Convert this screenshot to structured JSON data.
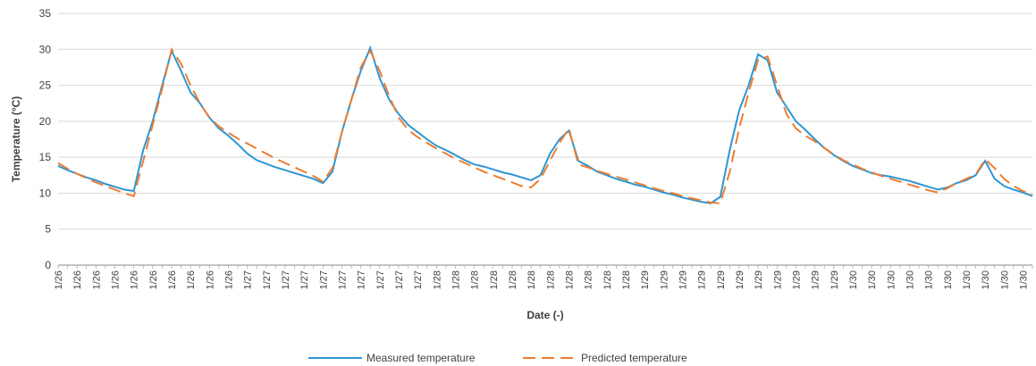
{
  "chart_data": {
    "type": "line",
    "x_label": "Date (-)",
    "y_label": "Temperature (°C)",
    "ylim": [
      0,
      35
    ],
    "yticks": [
      0,
      5,
      10,
      15,
      20,
      25,
      30,
      35
    ],
    "grid": true,
    "legend": "bottom",
    "categories": [
      "1/26",
      null,
      "1/26",
      null,
      "1/26",
      null,
      "1/26",
      null,
      "1/26",
      null,
      "1/26",
      null,
      "1/26",
      null,
      "1/26",
      null,
      "1/26",
      null,
      "1/26",
      null,
      "1/27",
      null,
      "1/27",
      null,
      "1/27",
      null,
      "1/27",
      null,
      "1/27",
      null,
      "1/27",
      null,
      "1/27",
      null,
      "1/27",
      null,
      "1/27",
      null,
      "1/27",
      null,
      "1/28",
      null,
      "1/28",
      null,
      "1/28",
      null,
      "1/28",
      null,
      "1/28",
      null,
      "1/28",
      null,
      "1/28",
      null,
      "1/28",
      null,
      "1/28",
      null,
      "1/28",
      null,
      "1/28",
      null,
      "1/29",
      null,
      "1/29",
      null,
      "1/29",
      null,
      "1/29",
      null,
      "1/29",
      null,
      "1/29",
      null,
      "1/29",
      null,
      "1/29",
      null,
      "1/29",
      null,
      "1/29",
      null,
      "1/29",
      null,
      "1/30",
      null,
      "1/30",
      null,
      "1/30",
      null,
      "1/30",
      null,
      "1/30",
      null,
      "1/30",
      null,
      "1/30",
      null,
      "1/30",
      null,
      "1/30",
      null,
      "1/30",
      null
    ],
    "series": [
      {
        "name": "Measured temperature",
        "color": "#2e96d2",
        "dash": false,
        "values": [
          13.8,
          13.2,
          12.7,
          12.2,
          11.8,
          11.3,
          10.9,
          10.5,
          10.3,
          16,
          20,
          25,
          29.8,
          27,
          24,
          22.5,
          20.5,
          19,
          18,
          16.8,
          15.5,
          14.6,
          14.1,
          13.6,
          13.2,
          12.8,
          12.4,
          12,
          11.4,
          13,
          18.5,
          23,
          27,
          30.2,
          26,
          23,
          21,
          19.5,
          18.5,
          17.5,
          16.6,
          16,
          15.3,
          14.6,
          14,
          13.7,
          13.3,
          12.9,
          12.6,
          12.2,
          11.8,
          12.5,
          15.5,
          17.5,
          18.7,
          14.5,
          13.8,
          13,
          12.5,
          12,
          11.6,
          11.2,
          10.9,
          10.5,
          10.1,
          9.8,
          9.4,
          9.1,
          8.8,
          8.6,
          9.5,
          16,
          21.5,
          25,
          29.3,
          28.5,
          24,
          22,
          20,
          18.8,
          17.5,
          16.3,
          15.3,
          14.5,
          13.8,
          13.3,
          12.8,
          12.5,
          12.3,
          12,
          11.7,
          11.3,
          10.9,
          10.5,
          10.8,
          11.4,
          11.8,
          12.5,
          14.5,
          12,
          11,
          10.5,
          10.1,
          9.6
        ]
      },
      {
        "name": "Predicted temperature",
        "color": "#ed7d31",
        "dash": true,
        "values": [
          14.2,
          13.4,
          12.7,
          12.1,
          11.5,
          11,
          10.5,
          10,
          9.6,
          14.5,
          19.5,
          24.5,
          30,
          28,
          25,
          22.5,
          20.5,
          19.3,
          18.4,
          17.6,
          16.9,
          16.2,
          15.5,
          14.8,
          14.2,
          13.6,
          13,
          12.4,
          11.6,
          13.5,
          18.5,
          23,
          27.5,
          29.8,
          27,
          23.5,
          20.5,
          18.8,
          17.8,
          17,
          16.2,
          15.5,
          14.8,
          14.2,
          13.6,
          13,
          12.5,
          12,
          11.5,
          11,
          10.8,
          12,
          14.5,
          17,
          19,
          14,
          13.6,
          13.1,
          12.7,
          12.3,
          11.9,
          11.5,
          11.1,
          10.7,
          10.3,
          10,
          9.6,
          9.3,
          9,
          8.7,
          8.6,
          13,
          19,
          24,
          28.5,
          29,
          25,
          21,
          19,
          18,
          17.2,
          16.3,
          15.4,
          14.6,
          14,
          13.4,
          12.9,
          12.4,
          12,
          11.6,
          11.2,
          10.8,
          10.4,
          10.1,
          10.7,
          11.4,
          12,
          12.6,
          14.7,
          13.5,
          12,
          11,
          10.3,
          9.8
        ]
      }
    ]
  }
}
